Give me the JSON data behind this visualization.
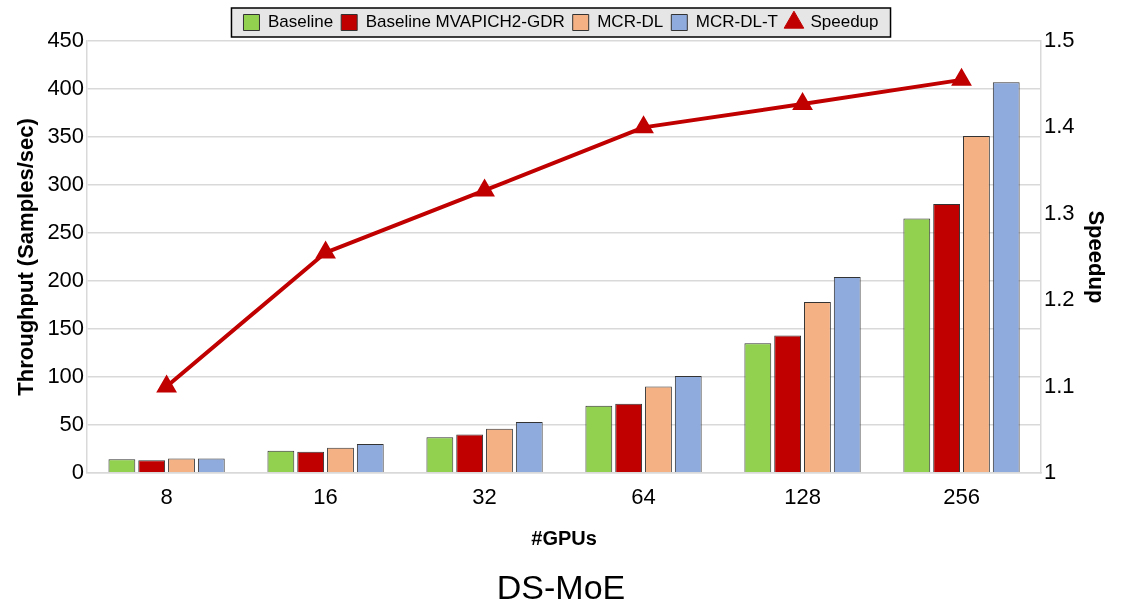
{
  "chart_data": {
    "type": "bar",
    "title": "DS-MoE",
    "xlabel": "#GPUs",
    "ylabel": "Throughput (Samples/sec)",
    "y2label": "Speedup",
    "categories": [
      "8",
      "16",
      "32",
      "64",
      "128",
      "256"
    ],
    "series": [
      {
        "name": "Baseline",
        "color": "#92d050",
        "values": [
          14,
          23,
          37,
          70,
          135,
          265
        ]
      },
      {
        "name": "Baseline MVAPICH2-GDR",
        "color": "#c00000",
        "values": [
          13,
          22,
          40,
          72,
          143,
          280
        ]
      },
      {
        "name": "MCR-DL",
        "color": "#f4b183",
        "values": [
          15,
          26,
          46,
          90,
          178,
          351
        ]
      },
      {
        "name": "MCR-DL-T",
        "color": "#8faadc",
        "values": [
          15,
          30,
          53,
          101,
          204,
          407
        ]
      },
      {
        "name": "Speedup",
        "type": "line",
        "axis": "y2",
        "color": "#c00000",
        "marker": "triangle",
        "values": [
          1.1,
          1.255,
          1.327,
          1.4,
          1.427,
          1.455
        ]
      }
    ],
    "ylim": [
      0,
      450
    ],
    "yticks": [
      0,
      50,
      100,
      150,
      200,
      250,
      300,
      350,
      400,
      450
    ],
    "y2lim": [
      1,
      1.5
    ],
    "y2ticks": [
      1,
      1.1,
      1.2,
      1.3,
      1.4,
      1.5
    ],
    "grid": "y",
    "legend": "top"
  }
}
